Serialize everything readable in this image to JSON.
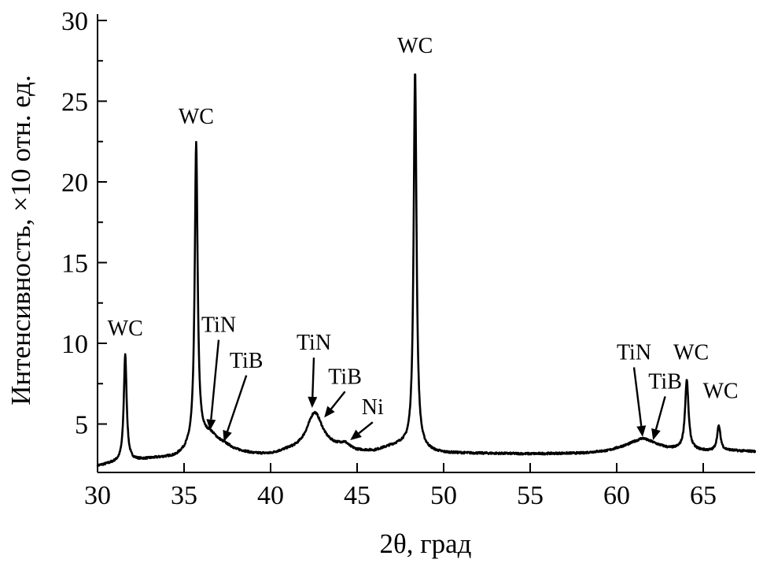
{
  "chart_data": {
    "type": "line",
    "title": "",
    "xlabel": "2θ, град",
    "ylabel": "Интенсивность, ×10 отн. ед.",
    "xlim": [
      30,
      68
    ],
    "ylim": [
      2,
      30
    ],
    "xticks": [
      30,
      35,
      40,
      45,
      50,
      55,
      60,
      65
    ],
    "yticks": [
      5,
      10,
      15,
      20,
      25,
      30
    ],
    "grid": false,
    "series": [
      {
        "color": "#000000",
        "background": [
          [
            30.0,
            2.4
          ],
          [
            31.0,
            2.6
          ],
          [
            33.0,
            2.85
          ],
          [
            34.5,
            3.0
          ],
          [
            35.0,
            3.3
          ],
          [
            36.0,
            4.2
          ],
          [
            36.5,
            4.4
          ],
          [
            37.0,
            4.0
          ],
          [
            38.0,
            3.4
          ],
          [
            39.0,
            3.15
          ],
          [
            40.0,
            3.1
          ],
          [
            41.0,
            3.3
          ],
          [
            44.0,
            3.5
          ],
          [
            45.0,
            3.3
          ],
          [
            46.0,
            3.3
          ],
          [
            47.0,
            3.6
          ],
          [
            47.6,
            3.7
          ],
          [
            49.5,
            3.25
          ],
          [
            50.0,
            3.2
          ],
          [
            55.0,
            3.15
          ],
          [
            58.0,
            3.2
          ],
          [
            59.5,
            3.35
          ],
          [
            61.0,
            3.8
          ],
          [
            62.0,
            3.8
          ],
          [
            63.0,
            3.5
          ],
          [
            65.5,
            3.3
          ],
          [
            66.5,
            3.35
          ],
          [
            68.0,
            3.3
          ]
        ],
        "peaks": [
          {
            "x": 31.6,
            "height": 6.6,
            "width": 0.1
          },
          {
            "x": 35.7,
            "height": 18.5,
            "width": 0.1
          },
          {
            "x": 42.55,
            "height": 2.3,
            "width": 0.55
          },
          {
            "x": 44.3,
            "height": 0.25,
            "width": 0.25
          },
          {
            "x": 48.35,
            "height": 23.3,
            "width": 0.1
          },
          {
            "x": 61.5,
            "height": 0.3,
            "width": 0.4
          },
          {
            "x": 64.05,
            "height": 4.3,
            "width": 0.12
          },
          {
            "x": 65.9,
            "height": 1.55,
            "width": 0.12
          }
        ]
      }
    ],
    "annotations": [
      {
        "text": "WC",
        "x": 31.6,
        "y": 10.5,
        "arrow": false
      },
      {
        "text": "WC",
        "x": 35.7,
        "y": 23.6,
        "arrow": false
      },
      {
        "text": "TiN",
        "x": 37.0,
        "y": 10.7,
        "arrow": true,
        "target": [
          36.5,
          4.6
        ]
      },
      {
        "text": "TiB",
        "x": 38.6,
        "y": 8.5,
        "arrow": true,
        "target": [
          37.3,
          3.9
        ]
      },
      {
        "text": "TiN",
        "x": 42.5,
        "y": 9.6,
        "arrow": true,
        "target": [
          42.4,
          6.0
        ]
      },
      {
        "text": "TiB",
        "x": 44.3,
        "y": 7.5,
        "arrow": true,
        "target": [
          43.1,
          5.4
        ]
      },
      {
        "text": "Ni",
        "x": 45.9,
        "y": 5.6,
        "arrow": true,
        "target": [
          44.6,
          4.0
        ]
      },
      {
        "text": "WC",
        "x": 48.35,
        "y": 28.0,
        "arrow": false
      },
      {
        "text": "TiN",
        "x": 61.0,
        "y": 9.0,
        "arrow": true,
        "target": [
          61.5,
          4.2
        ]
      },
      {
        "text": "TiB",
        "x": 62.8,
        "y": 7.2,
        "arrow": true,
        "target": [
          62.1,
          4.0
        ]
      },
      {
        "text": "WC",
        "x": 64.3,
        "y": 9.0,
        "arrow": false
      },
      {
        "text": "WC",
        "x": 66.0,
        "y": 6.6,
        "arrow": false
      }
    ]
  }
}
